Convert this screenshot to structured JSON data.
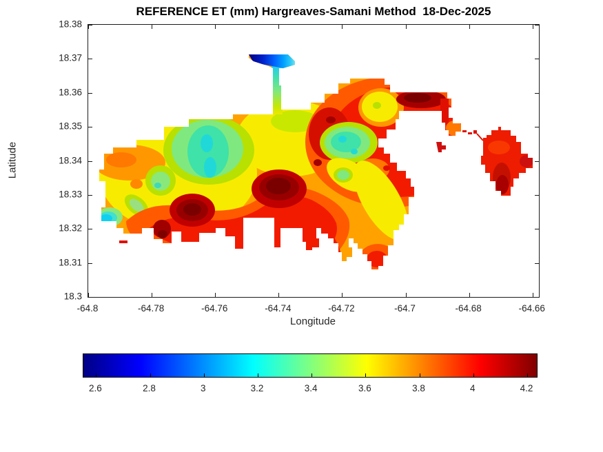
{
  "title": "REFERENCE ET (mm) Hargreaves-Samani Method  18-Dec-2025",
  "axes": {
    "x": {
      "label": "Longitude",
      "min": -64.8,
      "max": -64.658,
      "ticks": [
        {
          "value": -64.8,
          "label": "-64.8"
        },
        {
          "value": -64.78,
          "label": "-64.78"
        },
        {
          "value": -64.76,
          "label": "-64.76"
        },
        {
          "value": -64.74,
          "label": "-64.74"
        },
        {
          "value": -64.72,
          "label": "-64.72"
        },
        {
          "value": -64.7,
          "label": "-64.7"
        },
        {
          "value": -64.68,
          "label": "-64.68"
        },
        {
          "value": -64.66,
          "label": "-64.66"
        }
      ]
    },
    "y": {
      "label": "Latitude",
      "min": 18.3,
      "max": 18.38,
      "ticks": [
        {
          "value": 18.38,
          "label": "18.38"
        },
        {
          "value": 18.37,
          "label": "18.37"
        },
        {
          "value": 18.36,
          "label": "18.36"
        },
        {
          "value": 18.35,
          "label": "18.35"
        },
        {
          "value": 18.34,
          "label": "18.34"
        },
        {
          "value": 18.33,
          "label": "18.33"
        },
        {
          "value": 18.32,
          "label": "18.32"
        },
        {
          "value": 18.31,
          "label": "18.31"
        },
        {
          "value": 18.3,
          "label": "18.3"
        }
      ]
    }
  },
  "colorbar": {
    "orientation": "horizontal",
    "colormap": "jet",
    "min": 2.553,
    "max": 4.241,
    "ticks": [
      {
        "value": 2.6,
        "label": "2.6"
      },
      {
        "value": 2.8,
        "label": "2.8"
      },
      {
        "value": 3,
        "label": "3"
      },
      {
        "value": 3.2,
        "label": "3.2"
      },
      {
        "value": 3.4,
        "label": "3.4"
      },
      {
        "value": 3.6,
        "label": "3.6"
      },
      {
        "value": 3.8,
        "label": "3.8"
      },
      {
        "value": 4,
        "label": "4"
      },
      {
        "value": 4.2,
        "label": "4.2"
      }
    ]
  },
  "chart_data": {
    "type": "heatmap",
    "subtype": "filled-contour-map",
    "title": "REFERENCE ET (mm) Hargreaves-Samani Method  18-Dec-2025",
    "variable": "Reference ET",
    "units": "mm",
    "date": "18-Dec-2025",
    "method": "Hargreaves-Samani",
    "xlabel": "Longitude",
    "ylabel": "Latitude",
    "xlim": [
      -64.8,
      -64.658
    ],
    "ylim": [
      18.3,
      18.38
    ],
    "grid": false,
    "colormap": "jet",
    "colorbar_position": "south",
    "colorbar_range": [
      2.55,
      4.24
    ],
    "colorbar_ticks": [
      2.6,
      2.8,
      3,
      3.2,
      3.4,
      3.6,
      3.8,
      4,
      4.2
    ],
    "sampled_points": [
      {
        "lon": -64.744,
        "lat": 18.371,
        "et": 2.55,
        "note": "north peninsula strip, dark blue minimum"
      },
      {
        "lon": -64.735,
        "lat": 18.369,
        "et": 2.9,
        "note": "north strip east end, light blue"
      },
      {
        "lon": -64.739,
        "lat": 18.36,
        "et": 3.05,
        "note": "narrow stem, cyan-green"
      },
      {
        "lon": -64.762,
        "lat": 18.344,
        "et": 3.15,
        "note": "central-west teal basin"
      },
      {
        "lon": -64.714,
        "lat": 18.346,
        "et": 3.15,
        "note": "second teal basin"
      },
      {
        "lon": -64.797,
        "lat": 18.336,
        "et": 3.05,
        "note": "west tip cyan spot"
      },
      {
        "lon": -64.777,
        "lat": 18.338,
        "et": 3.3,
        "note": "west-edge light green patch"
      },
      {
        "lon": -64.788,
        "lat": 18.34,
        "et": 3.6,
        "note": "northwest orange band"
      },
      {
        "lon": -64.752,
        "lat": 18.336,
        "et": 3.55,
        "note": "mid yellow band"
      },
      {
        "lon": -64.74,
        "lat": 18.332,
        "et": 4.25,
        "note": "central maroon maximum"
      },
      {
        "lon": -64.76,
        "lat": 18.326,
        "et": 4.2,
        "note": "southwest dark red blob"
      },
      {
        "lon": -64.7,
        "lat": 18.355,
        "et": 4.2,
        "note": "northeast coast maroon ridge"
      },
      {
        "lon": -64.712,
        "lat": 18.35,
        "et": 3.9,
        "note": "east-central red mass"
      },
      {
        "lon": -64.7135,
        "lat": 18.3425,
        "et": 3.35,
        "note": "southeast light green spot"
      },
      {
        "lon": -64.711,
        "lat": 18.328,
        "et": 3.5,
        "note": "southeast peninsula yellow band"
      },
      {
        "lon": -64.684,
        "lat": 18.338,
        "et": 3.95,
        "note": "east lobe red"
      },
      {
        "lon": -64.6835,
        "lat": 18.331,
        "et": 4.1,
        "note": "east lobe dark red south part"
      }
    ]
  }
}
